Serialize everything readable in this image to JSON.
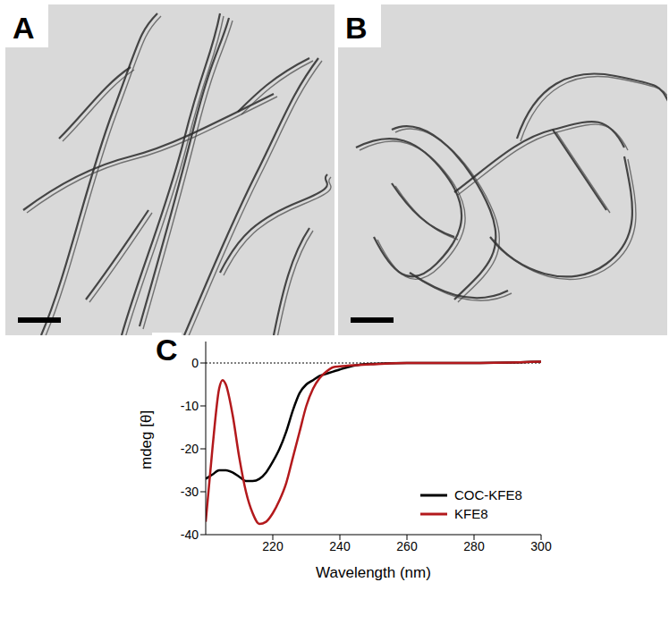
{
  "panel_labels": [
    "A",
    "B",
    "C"
  ],
  "chart_data": {
    "type": "line",
    "x_label": "Wavelength (nm)",
    "y_label": "mdeg [θ]",
    "x": [
      200,
      202,
      204,
      205,
      206,
      208,
      210,
      212,
      214,
      216,
      218,
      220,
      222,
      224,
      226,
      228,
      230,
      232,
      234,
      236,
      238,
      240,
      245,
      250,
      260,
      280,
      300
    ],
    "series": [
      {
        "name": "COC-KFE8",
        "color": "#000000",
        "values": [
          -27,
          -26,
          -25,
          -25,
          -25,
          -25.5,
          -26.5,
          -27.5,
          -27.5,
          -27,
          -25.5,
          -23,
          -20,
          -16,
          -11,
          -7,
          -5,
          -4,
          -3,
          -2.5,
          -2,
          -1.5,
          -0.5,
          -0.2,
          0,
          0,
          0.3
        ]
      },
      {
        "name": "KFE8",
        "color": "#b3191c",
        "values": [
          -37,
          -20,
          -6,
          -4,
          -5,
          -12,
          -22,
          -30,
          -35,
          -37.5,
          -37,
          -35,
          -32,
          -28,
          -22,
          -16,
          -10,
          -6,
          -3.5,
          -2,
          -1,
          -0.8,
          -0.5,
          -0.3,
          0,
          0,
          0.3
        ]
      }
    ],
    "xlim": [
      200,
      300
    ],
    "xticks": [
      220,
      240,
      260,
      280,
      300
    ],
    "ylim": [
      -40,
      5
    ],
    "yticks": [
      -40,
      -30,
      -20,
      -10,
      0
    ],
    "legend": "lower right",
    "grid": false
  }
}
